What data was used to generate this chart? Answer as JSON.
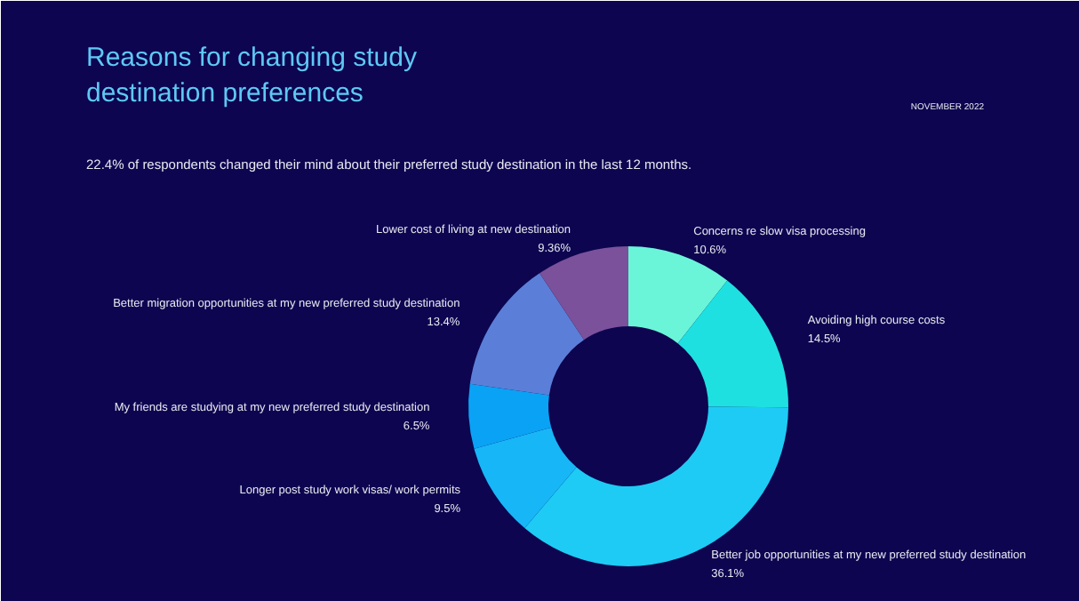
{
  "chart_data": {
    "type": "donut",
    "title": "Reasons for changing study destination preferences",
    "subtitle": "22.4% of respondents changed their mind about their preferred study destination in the last 12 months.",
    "annotations": [
      "NOVEMBER 2022"
    ],
    "categories": [
      "Concerns re slow visa processing",
      "Avoiding high course costs",
      "Better job opportunities at my new preferred study destination",
      "Longer post study work visas/ work permits",
      "My friends are studying at my new preferred study destination",
      "Better migration opportunities at my new preferred study destination",
      "Lower cost of living at new destination"
    ],
    "values": [
      10.6,
      14.5,
      36.1,
      9.5,
      6.5,
      13.4,
      9.36
    ],
    "value_labels": [
      "10.6%",
      "14.5%",
      "36.1%",
      "9.5%",
      "6.5%",
      "13.4%",
      "9.36%"
    ],
    "colors": [
      "#6af5d8",
      "#1fe0e0",
      "#1ecbf5",
      "#17b6f7",
      "#0aa2f5",
      "#5b7fd8",
      "#7a519a"
    ]
  }
}
